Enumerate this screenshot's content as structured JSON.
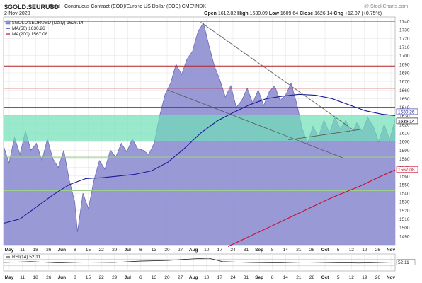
{
  "header": {
    "symbol": "$GOLD:$EURUSD",
    "description": "Gold - Continuous Contract (EOD)/Euro to US Dollar (EOD)  CME/INDX",
    "date": "2-Nov-2020",
    "open_label": "Open",
    "open": "1612.82",
    "high_label": "High",
    "high": "1630.09",
    "low_label": "Low",
    "low": "1609.64",
    "close_label": "Close",
    "close": "1626.14",
    "chg_label": "Chg",
    "chg": "+12.07 (+0.75%)",
    "watermark": "@ StockCharts.com"
  },
  "legend": {
    "main": "$GOLD:$EURUSD (Daily) 1626.14",
    "ma50": "MA(50) 1630.26",
    "ma200": "MA(200) 1567.08",
    "rsi": "RSI(14) 52.11"
  },
  "colors": {
    "area_fill": "#8e8ed2",
    "area_line": "#6b6bb8",
    "ma50": "#1c1c9a",
    "ma200": "#c8102e",
    "zone": "#6fe0b8",
    "resistance": "#b22222",
    "support": "#9ccf8a",
    "trendline": "#555555",
    "grid": "#e3e3e3"
  },
  "chart_data": [
    {
      "type": "area",
      "ylim": [
        1480,
        1745
      ],
      "y_ticks": [
        1490,
        1500,
        1510,
        1520,
        1530,
        1540,
        1550,
        1560,
        1570,
        1580,
        1590,
        1600,
        1610,
        1620,
        1630,
        1640,
        1650,
        1660,
        1670,
        1680,
        1690,
        1700,
        1710,
        1720,
        1730,
        1740
      ],
      "x_ticks": [
        "May",
        "11",
        "18",
        "26",
        "Jun",
        "8",
        "15",
        "22",
        "29",
        "Jul",
        "6",
        "13",
        "20",
        "27",
        "Aug",
        "10",
        "17",
        "24",
        "31",
        "Sep",
        "8",
        "14",
        "21",
        "28",
        "Oct",
        "5",
        "12",
        "19",
        "26",
        "Nov"
      ],
      "series": [
        {
          "name": "$GOLD:$EURUSD",
          "x": [
            0,
            2,
            4,
            6,
            8,
            10,
            12,
            14,
            16,
            18,
            20,
            22,
            24,
            26,
            27,
            29,
            31,
            33,
            35,
            37,
            39,
            41,
            43,
            45,
            47,
            49,
            51,
            53,
            55,
            57,
            59,
            61,
            63,
            65,
            67,
            69,
            71,
            73,
            75,
            77,
            79,
            81,
            83,
            85,
            87,
            89,
            91,
            93,
            95,
            97,
            99,
            101,
            103,
            105,
            107,
            109,
            111,
            113,
            115,
            117,
            119,
            121,
            123,
            125,
            127,
            129,
            131,
            133,
            135,
            137,
            139,
            141,
            143
          ],
          "values": [
            1595,
            1575,
            1605,
            1585,
            1612,
            1590,
            1598,
            1578,
            1603,
            1580,
            1570,
            1590,
            1555,
            1530,
            1495,
            1540,
            1522,
            1555,
            1578,
            1568,
            1590,
            1582,
            1598,
            1588,
            1603,
            1592,
            1590,
            1585,
            1598,
            1630,
            1655,
            1668,
            1690,
            1678,
            1696,
            1705,
            1728,
            1738,
            1712,
            1688,
            1672,
            1652,
            1665,
            1640,
            1648,
            1662,
            1645,
            1660,
            1642,
            1658,
            1665,
            1648,
            1654,
            1668,
            1645,
            1616,
            1598,
            1618,
            1605,
            1625,
            1610,
            1628,
            1615,
            1625,
            1608,
            1622,
            1612,
            1628,
            1618,
            1600,
            1620,
            1602,
            1626.14
          ]
        },
        {
          "name": "MA(50)",
          "x": [
            0,
            6,
            12,
            18,
            24,
            30,
            36,
            42,
            48,
            54,
            60,
            66,
            72,
            78,
            84,
            90,
            96,
            102,
            108,
            114,
            120,
            126,
            132,
            138,
            143
          ],
          "values": [
            1505,
            1510,
            1524,
            1538,
            1550,
            1557,
            1558,
            1560,
            1562,
            1566,
            1576,
            1592,
            1610,
            1624,
            1634,
            1643,
            1650,
            1653,
            1655,
            1654,
            1650,
            1643,
            1636,
            1632,
            1630.26
          ]
        },
        {
          "name": "MA(200)",
          "x": [
            82,
            90,
            100,
            110,
            120,
            130,
            138,
            143
          ],
          "values": [
            1478,
            1490,
            1505,
            1520,
            1535,
            1548,
            1560,
            1567.08
          ]
        }
      ],
      "resistance_lines": [
        1740,
        1688,
        1662,
        1640
      ],
      "support_lines": [
        1582,
        1543
      ],
      "highlight_zone": [
        1601,
        1631
      ],
      "trendlines": [
        {
          "x": [
            72,
            128
          ],
          "y": [
            1739,
            1613
          ]
        },
        {
          "x": [
            60,
            124
          ],
          "y": [
            1660,
            1581
          ]
        },
        {
          "x": [
            104,
            130
          ],
          "y": [
            1602,
            1614
          ]
        }
      ],
      "current_value_labels": [
        "1630.26",
        "1626.14",
        "1567.08"
      ]
    },
    {
      "type": "line",
      "title": "RSI(14) 52.11",
      "ylim": [
        0,
        100
      ],
      "series": [
        {
          "name": "RSI(14)",
          "x": [
            0,
            10,
            20,
            30,
            40,
            50,
            60,
            70,
            75,
            80,
            90,
            100,
            110,
            120,
            130,
            143
          ],
          "values": [
            50,
            55,
            48,
            52,
            50,
            58,
            62,
            72,
            75,
            55,
            50,
            48,
            52,
            49,
            47,
            52.11
          ]
        }
      ]
    }
  ]
}
